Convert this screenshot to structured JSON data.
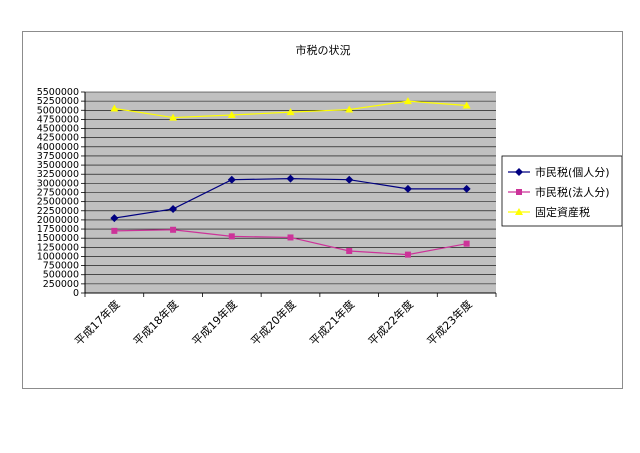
{
  "chart_data": {
    "type": "line",
    "title": "市税の状況",
    "categories": [
      "平成17年度",
      "平成18年度",
      "平成19年度",
      "平成20年度",
      "平成21年度",
      "平成22年度",
      "平成23年度"
    ],
    "ylim": [
      0,
      5500000
    ],
    "ytick_step": 250000,
    "yticks": [
      "0",
      "250000",
      "500000",
      "750000",
      "1000000",
      "1250000",
      "1500000",
      "1750000",
      "2000000",
      "2250000",
      "2500000",
      "2750000",
      "3000000",
      "3250000",
      "3500000",
      "3750000",
      "4000000",
      "4250000",
      "4500000",
      "4750000",
      "5000000",
      "5250000",
      "5500000"
    ],
    "grid": true,
    "legend_position": "right",
    "plot_background": "#c0c0c0",
    "series": [
      {
        "name": "市民税(個人分)",
        "color": "#000080",
        "marker": "diamond",
        "values": [
          2050000,
          2300000,
          3100000,
          3130000,
          3100000,
          2850000,
          2850000
        ]
      },
      {
        "name": "市民税(法人分)",
        "color": "#cc3399",
        "marker": "square",
        "values": [
          1700000,
          1730000,
          1550000,
          1520000,
          1150000,
          1050000,
          1350000
        ]
      },
      {
        "name": "固定資産税",
        "color": "#ffff00",
        "marker": "triangle",
        "values": [
          5050000,
          4800000,
          4870000,
          4950000,
          5020000,
          5250000,
          5130000
        ]
      }
    ]
  }
}
